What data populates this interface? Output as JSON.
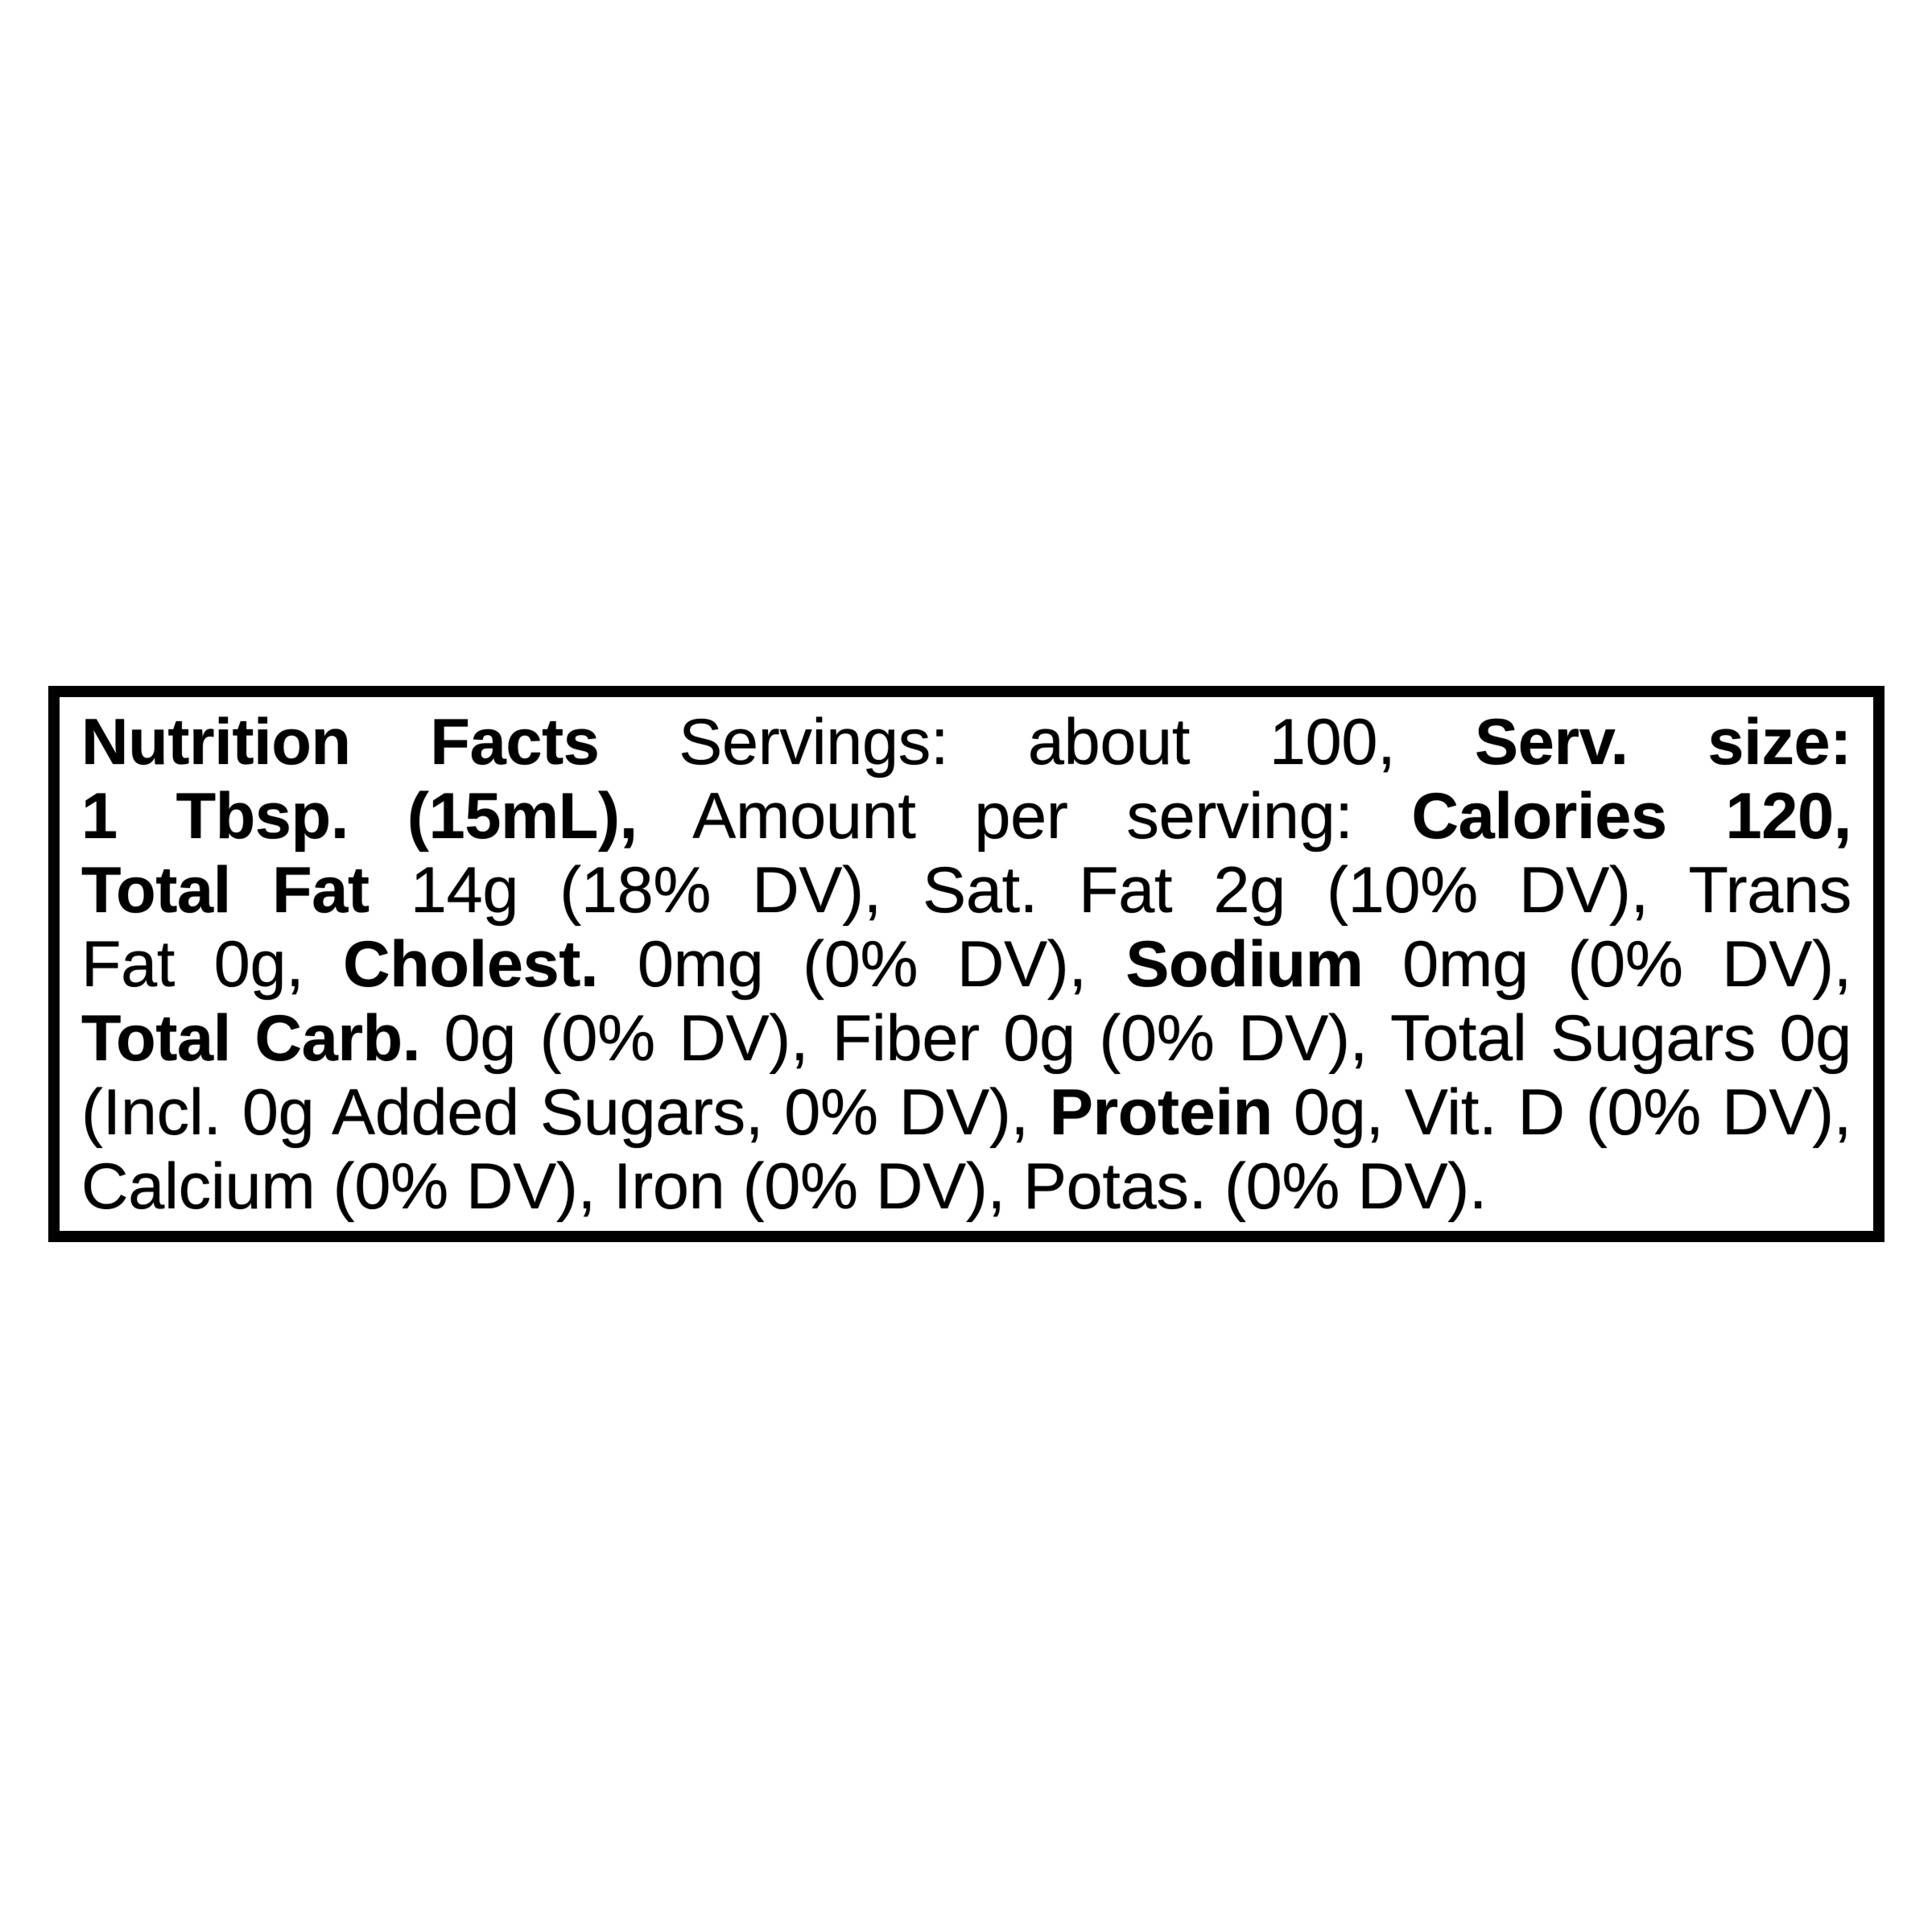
{
  "label": {
    "type": "nutrition-facts-linear-panel",
    "colors": {
      "background": "#ffffff",
      "border": "#000000",
      "text": "#000000"
    },
    "lines": [
      {
        "runs": [
          {
            "t": "Nutrition Facts"
          },
          {
            "t": "Servings: about 100,"
          },
          {
            "t": "Serv. size:"
          }
        ]
      },
      {
        "runs": [
          {
            "t": "1 Tbsp. (15mL),"
          },
          {
            "t": "Amount per serving:"
          },
          {
            "t": "Calories 120,"
          }
        ]
      },
      {
        "runs": [
          {
            "t": "Total Fat"
          },
          {
            "t": "14g (18% DV), Sat. Fat 2g (10% DV), Trans"
          }
        ]
      },
      {
        "runs": [
          {
            "t": "Fat 0g,"
          },
          {
            "t": "Cholest."
          },
          {
            "t": "0mg (0% DV),"
          },
          {
            "t": "Sodium"
          },
          {
            "t": "0mg (0% DV),"
          }
        ]
      },
      {
        "runs": [
          {
            "t": "Total Carb."
          },
          {
            "t": "0g (0% DV), Fiber 0g (0% DV), Total Sugars 0g"
          }
        ]
      },
      {
        "runs": [
          {
            "t": "(Incl. 0g Added Sugars, 0% DV),"
          },
          {
            "t": "Protein"
          },
          {
            "t": "0g, Vit. D (0% DV),"
          }
        ]
      },
      {
        "runs": [
          {
            "t": "Calcium (0% DV), Iron (0% DV), Potas. (0% DV)."
          }
        ]
      }
    ],
    "nutrition": {
      "servings_per_container": "about 100",
      "serving_size": "1 Tbsp. (15mL)",
      "calories": "120",
      "total_fat": "14g (18% DV)",
      "saturated_fat": "2g (10% DV)",
      "trans_fat": "0g",
      "cholesterol": "0mg (0% DV)",
      "sodium": "0mg (0% DV)",
      "total_carbohydrate": "0g (0% DV)",
      "dietary_fiber": "0g (0% DV)",
      "total_sugars": "0g",
      "added_sugars": "0g (0% DV)",
      "protein": "0g",
      "vitamin_d": "0% DV",
      "calcium": "0% DV",
      "iron": "0% DV",
      "potassium": "0% DV"
    }
  }
}
